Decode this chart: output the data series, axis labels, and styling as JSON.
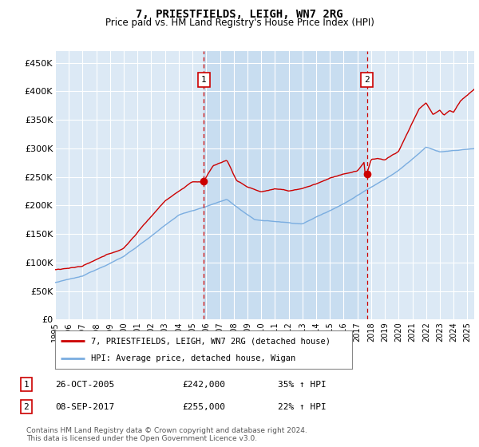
{
  "title": "7, PRIESTFIELDS, LEIGH, WN7 2RG",
  "subtitle": "Price paid vs. HM Land Registry's House Price Index (HPI)",
  "ylabel_ticks": [
    "£0",
    "£50K",
    "£100K",
    "£150K",
    "£200K",
    "£250K",
    "£300K",
    "£350K",
    "£400K",
    "£450K"
  ],
  "ytick_values": [
    0,
    50000,
    100000,
    150000,
    200000,
    250000,
    300000,
    350000,
    400000,
    450000
  ],
  "ylim": [
    0,
    470000
  ],
  "xlim_start": 1995.0,
  "xlim_end": 2025.5,
  "plot_bg": "#dce9f5",
  "highlight_bg": "#c8ddf0",
  "grid_color": "#ffffff",
  "red_line_color": "#cc0000",
  "blue_line_color": "#7aade0",
  "marker1_x": 2005.82,
  "marker1_y": 242000,
  "marker1_label": "1",
  "marker2_x": 2017.69,
  "marker2_y": 255000,
  "marker2_label": "2",
  "vline_color": "#cc0000",
  "legend_entries": [
    "7, PRIESTFIELDS, LEIGH, WN7 2RG (detached house)",
    "HPI: Average price, detached house, Wigan"
  ],
  "table_rows": [
    [
      "1",
      "26-OCT-2005",
      "£242,000",
      "35% ↑ HPI"
    ],
    [
      "2",
      "08-SEP-2017",
      "£255,000",
      "22% ↑ HPI"
    ]
  ],
  "footnote": "Contains HM Land Registry data © Crown copyright and database right 2024.\nThis data is licensed under the Open Government Licence v3.0.",
  "xtick_years": [
    1995,
    1996,
    1997,
    1998,
    1999,
    2000,
    2001,
    2002,
    2003,
    2004,
    2005,
    2006,
    2007,
    2008,
    2009,
    2010,
    2011,
    2012,
    2013,
    2014,
    2015,
    2016,
    2017,
    2018,
    2019,
    2020,
    2021,
    2022,
    2023,
    2024,
    2025
  ]
}
